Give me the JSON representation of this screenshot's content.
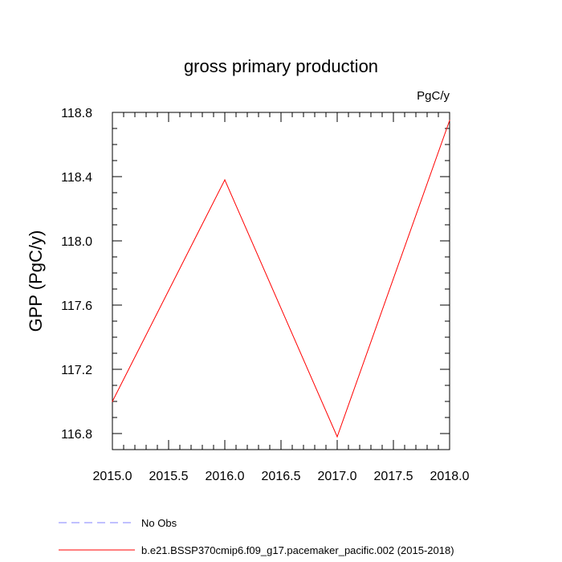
{
  "chart_data": {
    "type": "line",
    "title": "gross primary production",
    "units": "PgC/y",
    "ylabel": "GPP  (PgC/y)",
    "xlabel": "",
    "xlim": [
      2015.0,
      2018.0
    ],
    "ylim": [
      116.7,
      118.8
    ],
    "x_ticks": [
      "2015.0",
      "2015.5",
      "2016.0",
      "2016.5",
      "2017.0",
      "2017.5",
      "2018.0"
    ],
    "y_ticks": [
      "116.8",
      "117.2",
      "117.6",
      "118.0",
      "118.4",
      "118.8"
    ],
    "grid": false,
    "legend_position": "bottom-left",
    "series": [
      {
        "name": "No Obs",
        "color": "#8080ff",
        "dash": "dashed",
        "x": [],
        "y": []
      },
      {
        "name": "b.e21.BSSP370cmip6.f09_g17.pacemaker_pacific.002 (2015-2018)",
        "color": "#ff0000",
        "dash": "solid",
        "x": [
          2015.0,
          2016.0,
          2017.0,
          2018.0
        ],
        "y": [
          117.0,
          118.38,
          116.78,
          118.75
        ]
      }
    ]
  }
}
